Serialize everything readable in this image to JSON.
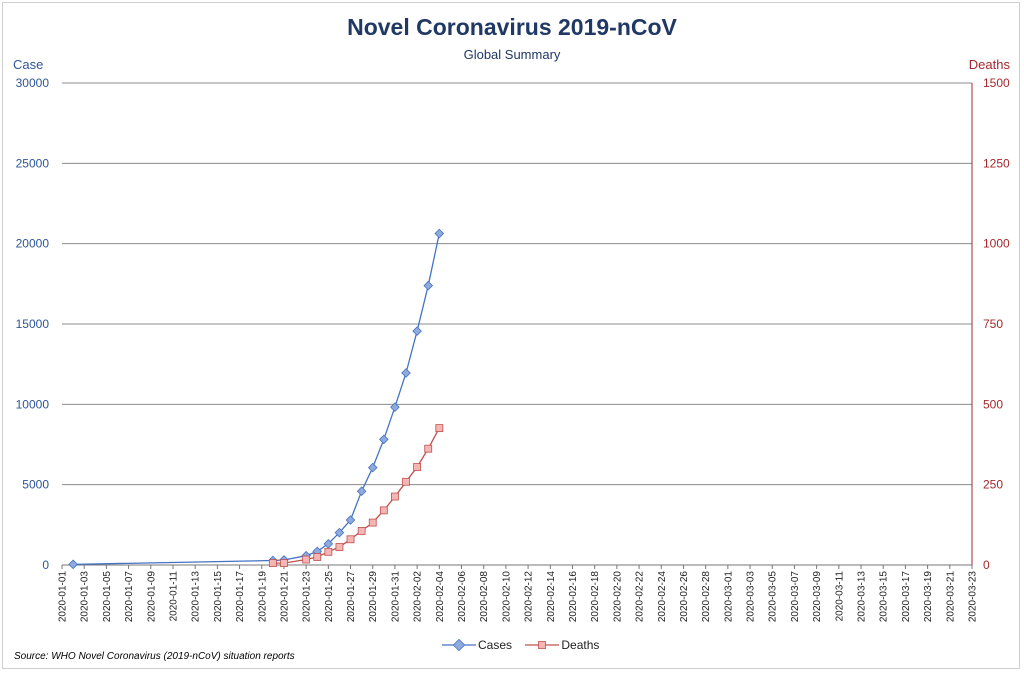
{
  "colors": {
    "cases": "#4472c4",
    "cases_fill": "#8faadc",
    "deaths": "#c0504d",
    "deaths_fill": "#f4b6b4",
    "left_axis": "#2f5597",
    "right_axis": "#a5282c",
    "grid": "#8c8c8c"
  },
  "chart_data": {
    "type": "line",
    "title": "Novel Coronavirus 2019-nCoV",
    "subtitle": "Global Summary",
    "ylabel_left": "Case",
    "ylabel_right": "Deaths",
    "source": "Source: WHO Novel Coronavirus (2019-nCoV) situation reports",
    "legend_position": "bottom",
    "grid": true,
    "x_axis": {
      "type": "date",
      "min": "2020-01-01",
      "max": "2020-03-23",
      "tick_labels": [
        "2020-01-01",
        "2020-01-03",
        "2020-01-05",
        "2020-01-07",
        "2020-01-09",
        "2020-01-11",
        "2020-01-13",
        "2020-01-15",
        "2020-01-17",
        "2020-01-19",
        "2020-01-21",
        "2020-01-23",
        "2020-01-25",
        "2020-01-27",
        "2020-01-29",
        "2020-01-31",
        "2020-02-02",
        "2020-02-04",
        "2020-02-06",
        "2020-02-08",
        "2020-02-10",
        "2020-02-12",
        "2020-02-14",
        "2020-02-16",
        "2020-02-18",
        "2020-02-20",
        "2020-02-22",
        "2020-02-24",
        "2020-02-26",
        "2020-02-28",
        "2020-03-01",
        "2020-03-03",
        "2020-03-05",
        "2020-03-07",
        "2020-03-09",
        "2020-03-11",
        "2020-03-13",
        "2020-03-15",
        "2020-03-17",
        "2020-03-19",
        "2020-03-21",
        "2020-03-23"
      ]
    },
    "y_left": {
      "min": 0,
      "max": 30000,
      "ticks": [
        "0",
        "5000",
        "10000",
        "15000",
        "20000",
        "25000",
        "30000"
      ]
    },
    "y_right": {
      "min": 0,
      "max": 1500,
      "ticks": [
        "0",
        "250",
        "500",
        "750",
        "1000",
        "1250",
        "1500"
      ]
    },
    "series": [
      {
        "name": "Cases",
        "axis": "left",
        "marker": "diamond",
        "points": [
          [
            "2020-01-02",
            40
          ],
          [
            "2020-01-20",
            282
          ],
          [
            "2020-01-21",
            314
          ],
          [
            "2020-01-23",
            581
          ],
          [
            "2020-01-24",
            846
          ],
          [
            "2020-01-25",
            1320
          ],
          [
            "2020-01-26",
            2014
          ],
          [
            "2020-01-27",
            2798
          ],
          [
            "2020-01-28",
            4593
          ],
          [
            "2020-01-29",
            6065
          ],
          [
            "2020-01-30",
            7818
          ],
          [
            "2020-01-31",
            9826
          ],
          [
            "2020-02-01",
            11953
          ],
          [
            "2020-02-02",
            14557
          ],
          [
            "2020-02-03",
            17391
          ],
          [
            "2020-02-04",
            20630
          ]
        ]
      },
      {
        "name": "Deaths",
        "axis": "right",
        "marker": "square",
        "points": [
          [
            "2020-01-20",
            6
          ],
          [
            "2020-01-21",
            6
          ],
          [
            "2020-01-23",
            17
          ],
          [
            "2020-01-24",
            25
          ],
          [
            "2020-01-25",
            41
          ],
          [
            "2020-01-26",
            56
          ],
          [
            "2020-01-27",
            80
          ],
          [
            "2020-01-28",
            106
          ],
          [
            "2020-01-29",
            132
          ],
          [
            "2020-01-30",
            170
          ],
          [
            "2020-01-31",
            213
          ],
          [
            "2020-02-01",
            259
          ],
          [
            "2020-02-02",
            305
          ],
          [
            "2020-02-03",
            362
          ],
          [
            "2020-02-04",
            426
          ]
        ]
      }
    ]
  }
}
